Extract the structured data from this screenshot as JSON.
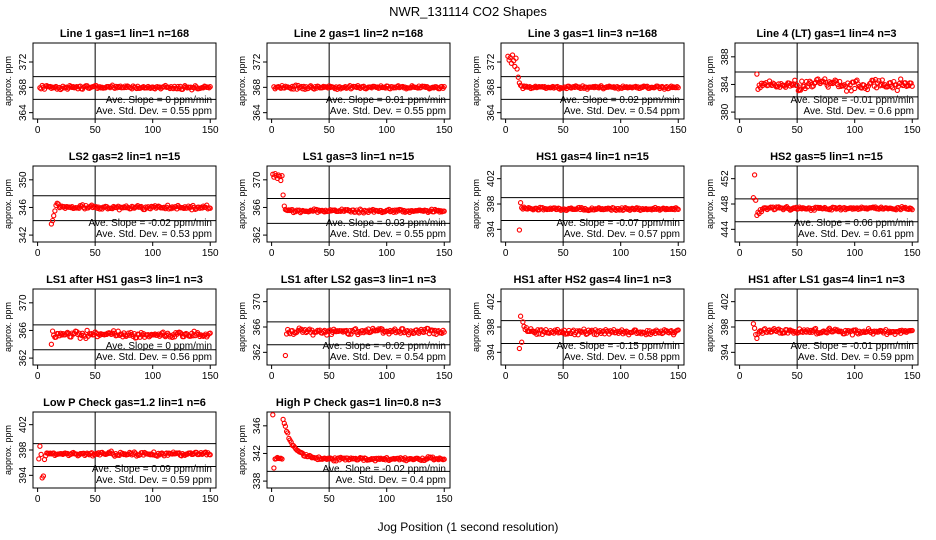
{
  "figure": {
    "title": "NWR_131114  CO2 Shapes",
    "xlabel": "Jog Position (1 second resolution)",
    "point_color": "#ff0000"
  },
  "chart_data": [
    {
      "type": "scatter",
      "title": "Line 1 gas=1 lin=1 n=168",
      "ylabel": "approx. ppm",
      "xlim": [
        -4,
        155
      ],
      "ylim": [
        363,
        375
      ],
      "xticks": [
        0,
        50,
        100,
        150
      ],
      "yticks": [
        364,
        368,
        372
      ],
      "hlines": [
        369.7,
        366.1
      ],
      "vline": 50,
      "notes": [
        "Ave. Slope = 0 ppm/min",
        "Ave. Std. Dev. = 0.55 ppm"
      ],
      "shape": {
        "start": 2,
        "base": 368,
        "noise": 0.18,
        "lead": []
      }
    },
    {
      "type": "scatter",
      "title": "Line 2 gas=1 lin=2 n=168",
      "ylabel": "approx. ppm",
      "xlim": [
        -4,
        155
      ],
      "ylim": [
        363,
        375
      ],
      "xticks": [
        0,
        50,
        100,
        150
      ],
      "yticks": [
        364,
        368,
        372
      ],
      "hlines": [
        369.7,
        366.1
      ],
      "vline": 50,
      "notes": [
        "Ave. Slope = 0.01 ppm/min",
        "Ave. Std. Dev. = 0.55 ppm"
      ],
      "shape": {
        "start": 2,
        "base": 368,
        "noise": 0.18,
        "lead": []
      }
    },
    {
      "type": "scatter",
      "title": "Line 3 gas=1 lin=3 n=168",
      "ylabel": "approx. ppm",
      "xlim": [
        -4,
        155
      ],
      "ylim": [
        363,
        375
      ],
      "xticks": [
        0,
        50,
        100,
        150
      ],
      "yticks": [
        364,
        368,
        372
      ],
      "hlines": [
        369.7,
        366.1
      ],
      "vline": 50,
      "notes": [
        "Ave. Slope = 0.02 ppm/min",
        "Ave. Std. Dev. = 0.54 ppm"
      ],
      "shape": {
        "start": 2,
        "base": 368,
        "noise": 0.15,
        "lead": [
          [
            2,
            372.9
          ],
          [
            3,
            372.3
          ],
          [
            4,
            372.7
          ],
          [
            5,
            371.8
          ],
          [
            6,
            373.1
          ],
          [
            7,
            372.2
          ],
          [
            8,
            371.3
          ],
          [
            9,
            372.6
          ],
          [
            10,
            370.9
          ],
          [
            11,
            369.6
          ],
          [
            12,
            368.7
          ],
          [
            13,
            368.3
          ]
        ]
      }
    },
    {
      "type": "scatter",
      "title": "Line 4 (LT) gas=1 lin=4 n=3",
      "ylabel": "approx. ppm",
      "xlim": [
        -4,
        155
      ],
      "ylim": [
        379,
        390
      ],
      "xticks": [
        0,
        50,
        100,
        150
      ],
      "yticks": [
        380,
        384,
        388
      ],
      "hlines": [
        385.8,
        382.2
      ],
      "vline": 50,
      "notes": [
        "Ave. Slope = -0.01 ppm/min",
        "Ave. Std. Dev. = 0.6 ppm"
      ],
      "shape": {
        "start": 15,
        "base": 384,
        "noise": 0.45,
        "lead": [
          [
            15,
            385.5
          ],
          [
            16,
            383.3
          ],
          [
            17,
            383.9
          ]
        ]
      }
    },
    {
      "type": "scatter",
      "title": "LS2 gas=2 lin=1 n=15",
      "ylabel": "approx. ppm",
      "xlim": [
        -4,
        155
      ],
      "ylim": [
        341,
        352
      ],
      "xticks": [
        0,
        50,
        100,
        150
      ],
      "yticks": [
        342,
        346,
        350
      ],
      "hlines": [
        347.7,
        344.1
      ],
      "vline": 50,
      "notes": [
        "Ave. Slope = -0.02 ppm/min",
        "Ave. Std. Dev. = 0.53 ppm"
      ],
      "shape": {
        "start": 12,
        "base": 346,
        "noise": 0.18,
        "lead": [
          [
            12,
            343.6
          ],
          [
            13,
            344.1
          ],
          [
            14,
            344.8
          ],
          [
            15,
            345.5
          ],
          [
            16,
            346.3
          ],
          [
            17,
            346.6
          ],
          [
            18,
            346.5
          ]
        ]
      }
    },
    {
      "type": "scatter",
      "title": "LS1 gas=3 lin=1 n=15",
      "ylabel": "approx. ppm",
      "xlim": [
        -4,
        155
      ],
      "ylim": [
        361,
        372
      ],
      "xticks": [
        0,
        50,
        100,
        150
      ],
      "yticks": [
        362,
        366,
        370
      ],
      "hlines": [
        367.3,
        363.7
      ],
      "vline": 50,
      "notes": [
        "Ave. Slope = 0.03 ppm/min",
        "Ave. Std. Dev. = 0.55 ppm"
      ],
      "shape": {
        "start": 1,
        "base": 365.5,
        "noise": 0.15,
        "lead": [
          [
            1,
            370.8
          ],
          [
            2,
            370.4
          ],
          [
            3,
            370.9
          ],
          [
            4,
            370.6
          ],
          [
            5,
            370.2
          ],
          [
            6,
            370.7
          ],
          [
            7,
            370.5
          ],
          [
            8,
            369.9
          ],
          [
            9,
            370.6
          ],
          [
            10,
            367.8
          ],
          [
            11,
            366.2
          ],
          [
            12,
            365.7
          ]
        ]
      }
    },
    {
      "type": "scatter",
      "title": "HS1 gas=4 lin=1 n=15",
      "ylabel": "approx. ppm",
      "xlim": [
        -4,
        155
      ],
      "ylim": [
        392,
        404
      ],
      "xticks": [
        0,
        50,
        100,
        150
      ],
      "yticks": [
        394,
        398,
        402
      ],
      "hlines": [
        399.0,
        395.4
      ],
      "vline": 50,
      "notes": [
        "Ave. Slope = -0.07 ppm/min",
        "Ave. Std. Dev. = 0.57 ppm"
      ],
      "shape": {
        "start": 12,
        "base": 397.2,
        "noise": 0.15,
        "lead": [
          [
            12,
            393.9
          ],
          [
            13,
            398.2
          ],
          [
            14,
            397.4
          ]
        ]
      }
    },
    {
      "type": "scatter",
      "title": "HS2 gas=5 lin=1 n=15",
      "ylabel": "approx. ppm",
      "xlim": [
        -4,
        155
      ],
      "ylim": [
        442,
        454
      ],
      "xticks": [
        0,
        50,
        100,
        150
      ],
      "yticks": [
        444,
        448,
        452
      ],
      "hlines": [
        448.8,
        445.2
      ],
      "vline": 50,
      "notes": [
        "Ave. Slope = 0.06 ppm/min",
        "Ave. Std. Dev. = 0.61 ppm"
      ],
      "shape": {
        "start": 12,
        "base": 447.3,
        "noise": 0.16,
        "lead": [
          [
            12,
            449.0
          ],
          [
            13,
            452.6
          ],
          [
            14,
            448.6
          ],
          [
            15,
            446.2
          ],
          [
            16,
            446.7
          ],
          [
            17,
            446.5
          ],
          [
            18,
            447.1
          ],
          [
            19,
            446.8
          ]
        ]
      }
    },
    {
      "type": "scatter",
      "title": "LS1 after HS1 gas=3 lin=1 n=3",
      "ylabel": "approx. ppm",
      "xlim": [
        -4,
        155
      ],
      "ylim": [
        361,
        372
      ],
      "xticks": [
        0,
        50,
        100,
        150
      ],
      "yticks": [
        362,
        366,
        370
      ],
      "hlines": [
        366.8,
        363.2
      ],
      "vline": 50,
      "notes": [
        "Ave. Slope = 0 ppm/min",
        "Ave. Std. Dev. = 0.56 ppm"
      ],
      "shape": {
        "start": 12,
        "base": 365.4,
        "noise": 0.3,
        "lead": [
          [
            12,
            364.0
          ],
          [
            13,
            365.9
          ],
          [
            14,
            365.3
          ]
        ]
      }
    },
    {
      "type": "scatter",
      "title": "LS1 after LS2 gas=3 lin=1 n=3",
      "ylabel": "approx. ppm",
      "xlim": [
        -4,
        155
      ],
      "ylim": [
        360,
        372
      ],
      "xticks": [
        0,
        50,
        100,
        150
      ],
      "yticks": [
        362,
        366,
        370
      ],
      "hlines": [
        366.8,
        363.2
      ],
      "vline": 50,
      "notes": [
        "Ave. Slope = -0.02 ppm/min",
        "Ave. Std. Dev. = 0.54 ppm"
      ],
      "shape": {
        "start": 12,
        "base": 365.3,
        "noise": 0.28,
        "lead": [
          [
            12,
            361.5
          ],
          [
            13,
            364.9
          ],
          [
            14,
            365.6
          ]
        ]
      }
    },
    {
      "type": "scatter",
      "title": "HS1 after HS2 gas=4 lin=1 n=3",
      "ylabel": "approx. ppm",
      "xlim": [
        -4,
        155
      ],
      "ylim": [
        392,
        404
      ],
      "xticks": [
        0,
        50,
        100,
        150
      ],
      "yticks": [
        394,
        398,
        402
      ],
      "hlines": [
        399.0,
        395.4
      ],
      "vline": 50,
      "notes": [
        "Ave. Slope = -0.15 ppm/min",
        "Ave. Std. Dev. = 0.58 ppm"
      ],
      "shape": {
        "start": 12,
        "base": 397.2,
        "noise": 0.28,
        "lead": [
          [
            12,
            394.6
          ],
          [
            13,
            399.7
          ],
          [
            14,
            395.6
          ],
          [
            15,
            398.8
          ],
          [
            16,
            398.1
          ],
          [
            17,
            397.6
          ],
          [
            18,
            397.9
          ],
          [
            19,
            397.3
          ]
        ]
      }
    },
    {
      "type": "scatter",
      "title": "HS1 after LS1 gas=4 lin=1 n=3",
      "ylabel": "approx. ppm",
      "xlim": [
        -4,
        155
      ],
      "ylim": [
        392,
        404
      ],
      "xticks": [
        0,
        50,
        100,
        150
      ],
      "yticks": [
        394,
        398,
        402
      ],
      "hlines": [
        399.0,
        395.4
      ],
      "vline": 50,
      "notes": [
        "Ave. Slope = -0.01 ppm/min",
        "Ave. Std. Dev. = 0.59 ppm"
      ],
      "shape": {
        "start": 12,
        "base": 397.3,
        "noise": 0.26,
        "lead": [
          [
            12,
            398.5
          ],
          [
            13,
            397.8
          ],
          [
            14,
            396.8
          ],
          [
            15,
            396.2
          ],
          [
            16,
            396.9
          ]
        ]
      }
    },
    {
      "type": "scatter",
      "title": "Low P Check gas=1.2 lin=1 n=6",
      "ylabel": "approx. ppm",
      "xlim": [
        -4,
        155
      ],
      "ylim": [
        392,
        404
      ],
      "xticks": [
        0,
        50,
        100,
        150
      ],
      "yticks": [
        394,
        398,
        402
      ],
      "hlines": [
        399.0,
        395.4
      ],
      "vline": 50,
      "notes": [
        "Ave. Slope = 0.09 ppm/min",
        "Ave. Std. Dev. = 0.59 ppm"
      ],
      "shape": {
        "start": 1,
        "base": 397.4,
        "noise": 0.2,
        "lead": [
          [
            1,
            396.6
          ],
          [
            2,
            398.6
          ],
          [
            3,
            397.3
          ],
          [
            4,
            393.6
          ],
          [
            5,
            393.9
          ],
          [
            6,
            396.5
          ],
          [
            7,
            397.1
          ]
        ]
      }
    },
    {
      "type": "scatter",
      "title": "High P Check gas=1 lin=0.8 n=3",
      "ylabel": "approx. ppm",
      "xlim": [
        -4,
        155
      ],
      "ylim": [
        337,
        348
      ],
      "xticks": [
        0,
        50,
        100,
        150
      ],
      "yticks": [
        338,
        342,
        346
      ],
      "hlines": [
        343.0,
        339.4
      ],
      "vline": 50,
      "notes": [
        "Ave. Slope = -0.02 ppm/min",
        "Ave. Std. Dev. = 0.4 ppm"
      ],
      "shape": {
        "start": 1,
        "base": 341.2,
        "noise": 0.15,
        "decay": {
          "from": 10,
          "amp": 5.8,
          "tau": 8
        },
        "lead": [
          [
            1,
            347.6
          ],
          [
            2,
            339.9
          ]
        ]
      }
    }
  ]
}
